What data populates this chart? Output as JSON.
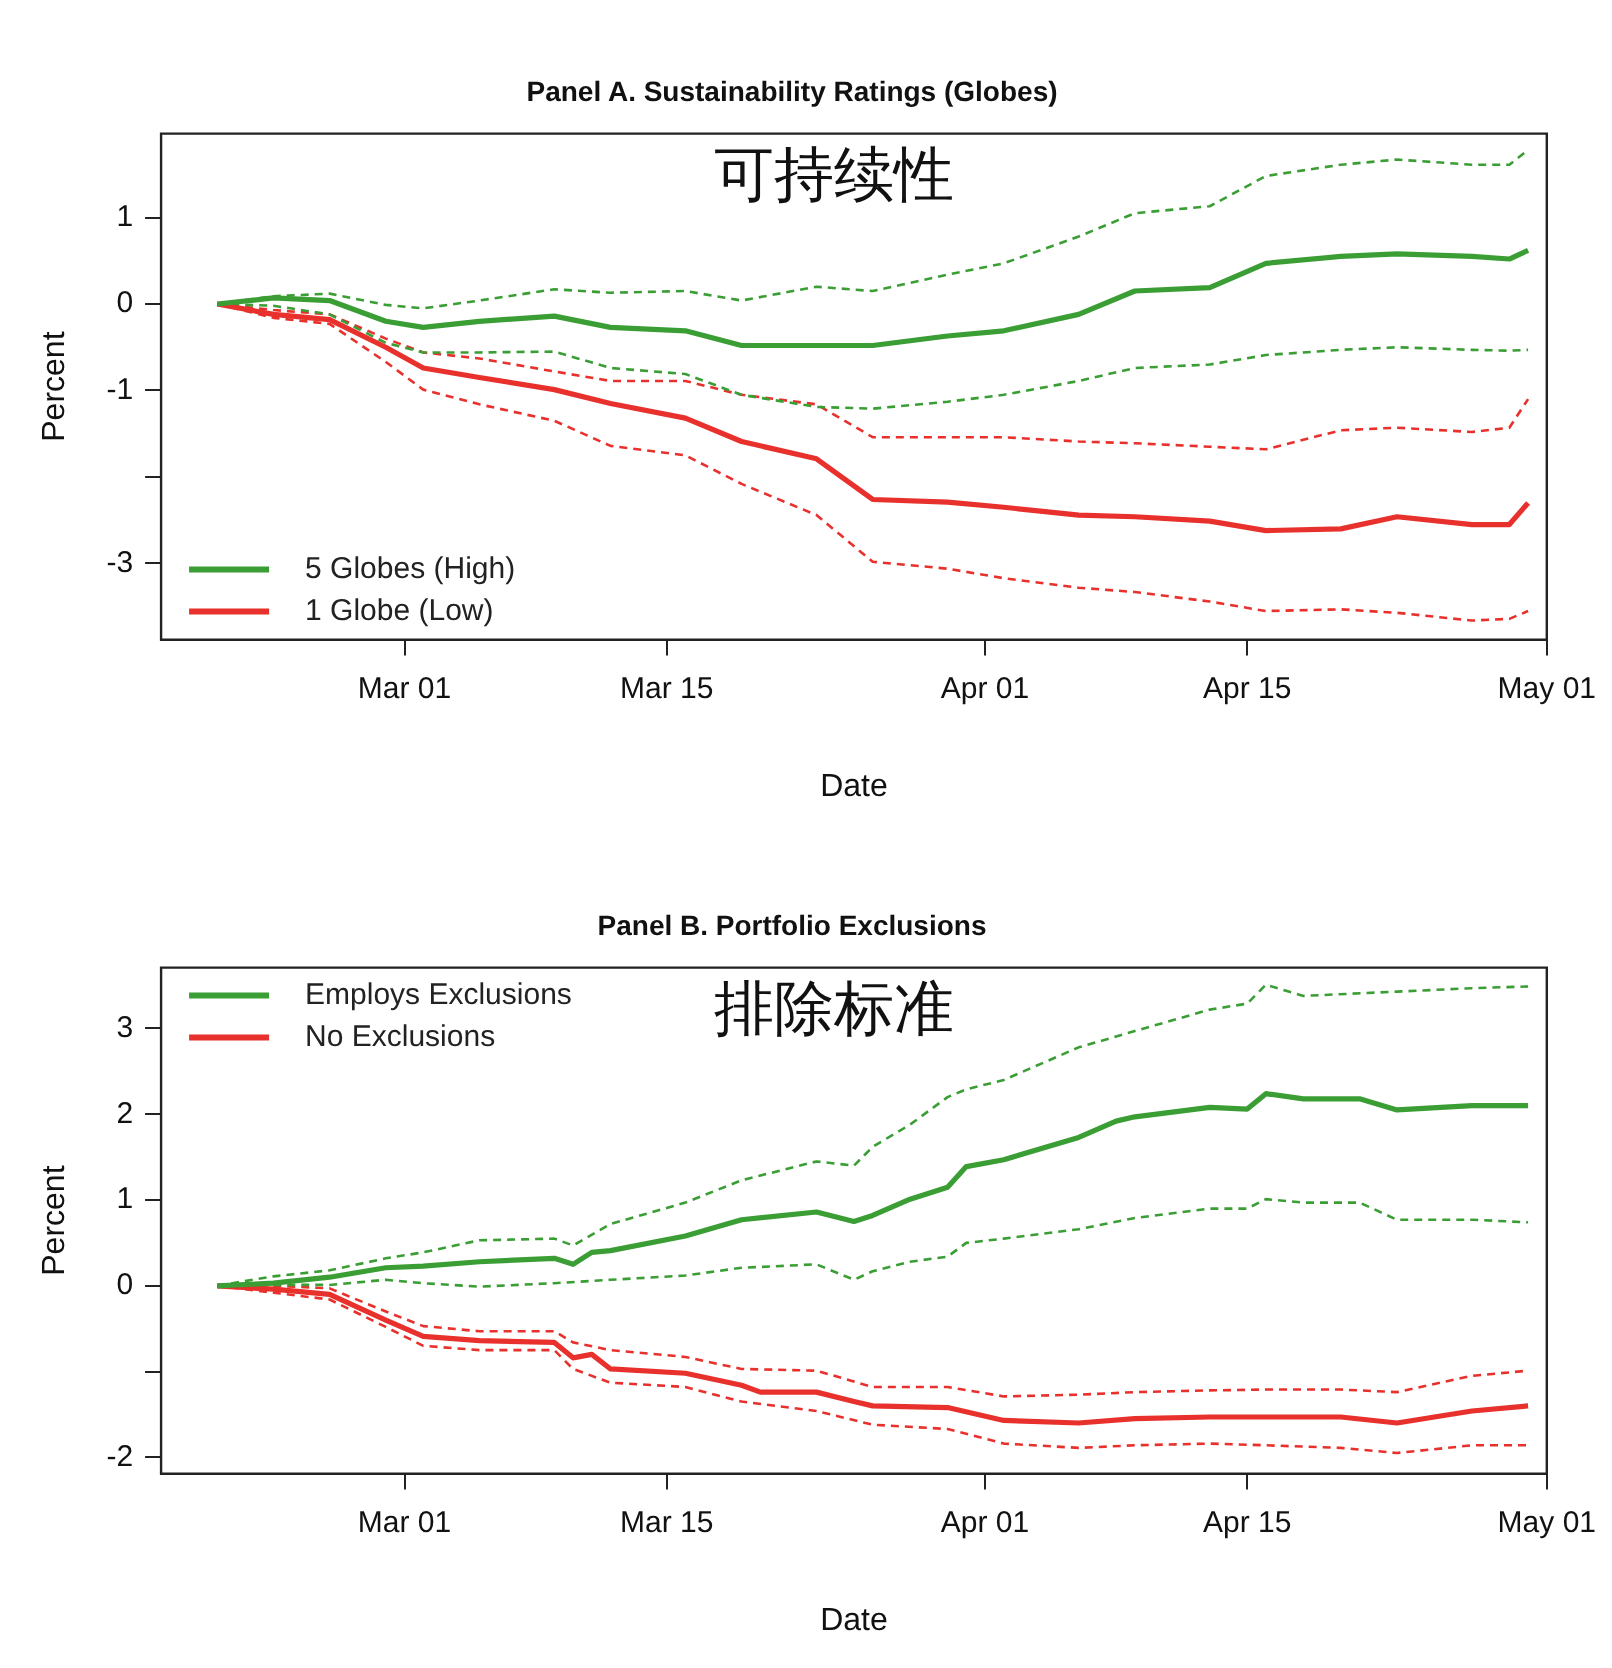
{
  "chart_data": [
    {
      "type": "line",
      "title": "Panel A. Sustainability Ratings (Globes)",
      "xlabel": "Date",
      "ylabel": "Percent",
      "annotations": [
        "可持续性"
      ],
      "xlim": [
        "--02-16",
        "--05-01"
      ],
      "xticks": [
        {
          "value": "--03-01",
          "label": "Mar 01"
        },
        {
          "value": "--03-15",
          "label": "Mar 15"
        },
        {
          "value": "--04-01",
          "label": "Apr 01"
        },
        {
          "value": "--04-15",
          "label": "Apr 15"
        },
        {
          "value": "--05-01",
          "label": "May 01"
        }
      ],
      "ylim": [
        -3.88,
        1.97
      ],
      "yticks": [
        -3,
        {
          "value": -2,
          "label": null
        },
        -1,
        0,
        1
      ],
      "legend": "bottom left",
      "marker": "none",
      "series": [
        {
          "name": "5 Globes (High)",
          "color": "#3a9e35",
          "line_style": "solid",
          "x": [
            "--02-19",
            "--02-22",
            "--02-25",
            "--02-28",
            "--03-02",
            "--03-05",
            "--03-09",
            "--03-12",
            "--03-16",
            "--03-19",
            "--03-23",
            "--03-26",
            "--03-30",
            "--04-02",
            "--04-06",
            "--04-09",
            "--04-13",
            "--04-16",
            "--04-20",
            "--04-23",
            "--04-27",
            "--04-29",
            "--04-30"
          ],
          "values": [
            0,
            0.07,
            0.04,
            -0.2,
            -0.27,
            -0.2,
            -0.14,
            -0.27,
            -0.31,
            -0.48,
            -0.48,
            -0.48,
            -0.37,
            -0.31,
            -0.12,
            0.15,
            0.19,
            0.47,
            0.55,
            0.58,
            0.55,
            0.52,
            0.62
          ]
        },
        {
          "name": "1 Globe (Low)",
          "color": "#e8312c",
          "line_style": "solid",
          "x": [
            "--02-19",
            "--02-22",
            "--02-25",
            "--02-28",
            "--03-02",
            "--03-05",
            "--03-09",
            "--03-12",
            "--03-16",
            "--03-19",
            "--03-23",
            "--03-26",
            "--03-30",
            "--04-02",
            "--04-06",
            "--04-09",
            "--04-13",
            "--04-16",
            "--04-20",
            "--04-23",
            "--04-27",
            "--04-29",
            "--04-30"
          ],
          "values": [
            0,
            -0.12,
            -0.18,
            -0.5,
            -0.74,
            -0.85,
            -0.99,
            -1.15,
            -1.32,
            -1.59,
            -1.79,
            -2.26,
            -2.29,
            -2.35,
            -2.44,
            -2.46,
            -2.51,
            -2.62,
            -2.6,
            -2.46,
            -2.55,
            -2.55,
            -2.3
          ]
        },
        {
          "color": "#3a9e35",
          "line_style": "dashed",
          "x": [
            "--02-19",
            "--02-22",
            "--02-25",
            "--02-28",
            "--03-02",
            "--03-05",
            "--03-09",
            "--03-12",
            "--03-16",
            "--03-19",
            "--03-23",
            "--03-26",
            "--03-30",
            "--04-02",
            "--04-06",
            "--04-09",
            "--04-13",
            "--04-16",
            "--04-20",
            "--04-23",
            "--04-27",
            "--04-29",
            "--04-30"
          ],
          "values": [
            0,
            0.09,
            0.12,
            -0.01,
            -0.05,
            0.04,
            0.17,
            0.13,
            0.15,
            0.04,
            0.2,
            0.15,
            0.34,
            0.47,
            0.78,
            1.05,
            1.13,
            1.48,
            1.61,
            1.67,
            1.61,
            1.61,
            1.78
          ]
        },
        {
          "color": "#3a9e35",
          "line_style": "dashed",
          "x": [
            "--02-19",
            "--02-22",
            "--02-25",
            "--02-28",
            "--03-02",
            "--03-05",
            "--03-09",
            "--03-12",
            "--03-16",
            "--03-19",
            "--03-23",
            "--03-26",
            "--03-30",
            "--04-02",
            "--04-06",
            "--04-09",
            "--04-13",
            "--04-16",
            "--04-20",
            "--04-23",
            "--04-27",
            "--04-29",
            "--04-30"
          ],
          "values": [
            0,
            -0.02,
            -0.12,
            -0.45,
            -0.56,
            -0.56,
            -0.55,
            -0.74,
            -0.81,
            -1.05,
            -1.19,
            -1.21,
            -1.13,
            -1.05,
            -0.89,
            -0.74,
            -0.7,
            -0.59,
            -0.53,
            -0.5,
            -0.53,
            -0.54,
            -0.53
          ]
        },
        {
          "color": "#e8312c",
          "line_style": "dashed",
          "x": [
            "--02-19",
            "--02-22",
            "--02-25",
            "--02-28",
            "--03-02",
            "--03-05",
            "--03-09",
            "--03-12",
            "--03-16",
            "--03-19",
            "--03-23",
            "--03-26",
            "--03-30",
            "--04-02",
            "--04-06",
            "--04-09",
            "--04-13",
            "--04-16",
            "--04-20",
            "--04-23",
            "--04-27",
            "--04-29",
            "--04-30"
          ],
          "values": [
            0,
            -0.07,
            -0.12,
            -0.4,
            -0.56,
            -0.63,
            -0.78,
            -0.89,
            -0.89,
            -1.05,
            -1.16,
            -1.54,
            -1.54,
            -1.54,
            -1.59,
            -1.61,
            -1.65,
            -1.68,
            -1.46,
            -1.43,
            -1.48,
            -1.43,
            -1.1
          ]
        },
        {
          "color": "#e8312c",
          "line_style": "dashed",
          "x": [
            "--02-19",
            "--02-22",
            "--02-25",
            "--02-28",
            "--03-02",
            "--03-05",
            "--03-09",
            "--03-12",
            "--03-16",
            "--03-19",
            "--03-23",
            "--03-26",
            "--03-30",
            "--04-02",
            "--04-06",
            "--04-09",
            "--04-13",
            "--04-16",
            "--04-20",
            "--04-23",
            "--04-27",
            "--04-29",
            "--04-30"
          ],
          "values": [
            0,
            -0.16,
            -0.23,
            -0.67,
            -0.99,
            -1.16,
            -1.35,
            -1.64,
            -1.75,
            -2.08,
            -2.44,
            -2.98,
            -3.06,
            -3.17,
            -3.28,
            -3.33,
            -3.44,
            -3.55,
            -3.53,
            -3.57,
            -3.66,
            -3.64,
            -3.55
          ]
        }
      ]
    },
    {
      "type": "line",
      "title": "Panel B. Portfolio Exclusions",
      "xlabel": "Date",
      "ylabel": "Percent",
      "annotations": [
        "排除标准"
      ],
      "xlim": [
        "--02-16",
        "--05-01"
      ],
      "xticks": [
        {
          "value": "--03-01",
          "label": "Mar 01"
        },
        {
          "value": "--03-15",
          "label": "Mar 15"
        },
        {
          "value": "--04-01",
          "label": "Apr 01"
        },
        {
          "value": "--04-15",
          "label": "Apr 15"
        },
        {
          "value": "--05-01",
          "label": "May 01"
        }
      ],
      "ylim": [
        -2.19,
        3.71
      ],
      "yticks": [
        -2,
        {
          "value": -1,
          "label": null
        },
        0,
        1,
        2,
        3
      ],
      "legend": "top left",
      "marker": "none",
      "series": [
        {
          "name": "Employs Exclusions",
          "color": "#3a9e35",
          "line_style": "solid",
          "x": [
            "--02-19",
            "--02-22",
            "--02-25",
            "--02-28",
            "--03-02",
            "--03-05",
            "--03-09",
            "--03-10",
            "--03-11",
            "--03-12",
            "--03-16",
            "--03-19",
            "--03-23",
            "--03-25",
            "--03-26",
            "--03-28",
            "--03-30",
            "--03-31",
            "--04-02",
            "--04-06",
            "--04-08",
            "--04-09",
            "--04-13",
            "--04-15",
            "--04-16",
            "--04-18",
            "--04-21",
            "--04-23",
            "--04-27",
            "--04-30"
          ],
          "values": [
            0,
            0.03,
            0.1,
            0.21,
            0.23,
            0.28,
            0.32,
            0.25,
            0.39,
            0.41,
            0.58,
            0.77,
            0.86,
            0.75,
            0.82,
            1.01,
            1.15,
            1.39,
            1.47,
            1.73,
            1.92,
            1.97,
            2.08,
            2.06,
            2.24,
            2.18,
            2.18,
            2.05,
            2.1,
            2.1
          ]
        },
        {
          "name": "No Exclusions",
          "color": "#e8312c",
          "line_style": "solid",
          "x": [
            "--02-19",
            "--02-22",
            "--02-25",
            "--02-28",
            "--03-02",
            "--03-05",
            "--03-09",
            "--03-10",
            "--03-11",
            "--03-12",
            "--03-16",
            "--03-19",
            "--03-20",
            "--03-23",
            "--03-25",
            "--03-26",
            "--03-30",
            "--04-02",
            "--04-06",
            "--04-09",
            "--04-13",
            "--04-16",
            "--04-20",
            "--04-23",
            "--04-27",
            "--04-30"
          ],
          "values": [
            0,
            -0.04,
            -0.1,
            -0.4,
            -0.59,
            -0.64,
            -0.66,
            -0.84,
            -0.8,
            -0.97,
            -1.02,
            -1.16,
            -1.24,
            -1.24,
            -1.35,
            -1.4,
            -1.42,
            -1.57,
            -1.6,
            -1.55,
            -1.53,
            -1.53,
            -1.53,
            -1.6,
            -1.46,
            -1.4
          ]
        },
        {
          "color": "#3a9e35",
          "line_style": "dashed",
          "x": [
            "--02-19",
            "--02-22",
            "--02-25",
            "--02-28",
            "--03-02",
            "--03-05",
            "--03-09",
            "--03-10",
            "--03-12",
            "--03-16",
            "--03-19",
            "--03-23",
            "--03-25",
            "--03-26",
            "--03-28",
            "--03-30",
            "--03-31",
            "--04-02",
            "--04-06",
            "--04-09",
            "--04-13",
            "--04-15",
            "--04-16",
            "--04-18",
            "--04-23",
            "--04-27",
            "--04-30"
          ],
          "values": [
            0,
            0.11,
            0.18,
            0.32,
            0.39,
            0.53,
            0.55,
            0.47,
            0.72,
            0.97,
            1.23,
            1.45,
            1.4,
            1.62,
            1.88,
            2.2,
            2.29,
            2.4,
            2.78,
            2.97,
            3.22,
            3.29,
            3.51,
            3.38,
            3.43,
            3.47,
            3.49
          ]
        },
        {
          "color": "#3a9e35",
          "line_style": "dashed",
          "x": [
            "--02-19",
            "--02-22",
            "--02-25",
            "--02-28",
            "--03-02",
            "--03-05",
            "--03-09",
            "--03-12",
            "--03-16",
            "--03-19",
            "--03-23",
            "--03-25",
            "--03-26",
            "--03-28",
            "--03-30",
            "--03-31",
            "--04-02",
            "--04-06",
            "--04-09",
            "--04-13",
            "--04-15",
            "--04-16",
            "--04-18",
            "--04-21",
            "--04-23",
            "--04-27",
            "--04-30"
          ],
          "values": [
            0,
            0.01,
            0.01,
            0.07,
            0.03,
            -0.01,
            0.03,
            0.07,
            0.12,
            0.21,
            0.25,
            0.07,
            0.17,
            0.28,
            0.34,
            0.5,
            0.55,
            0.66,
            0.79,
            0.9,
            0.9,
            1.01,
            0.97,
            0.97,
            0.77,
            0.77,
            0.74
          ]
        },
        {
          "color": "#e8312c",
          "line_style": "dashed",
          "x": [
            "--02-19",
            "--02-22",
            "--02-25",
            "--02-28",
            "--03-02",
            "--03-05",
            "--03-09",
            "--03-10",
            "--03-12",
            "--03-16",
            "--03-19",
            "--03-23",
            "--03-26",
            "--03-30",
            "--04-02",
            "--04-06",
            "--04-09",
            "--04-13",
            "--04-16",
            "--04-20",
            "--04-23",
            "--04-27",
            "--04-30"
          ],
          "values": [
            0,
            0,
            -0.03,
            -0.3,
            -0.47,
            -0.53,
            -0.53,
            -0.66,
            -0.75,
            -0.83,
            -0.97,
            -0.99,
            -1.18,
            -1.18,
            -1.29,
            -1.27,
            -1.24,
            -1.22,
            -1.21,
            -1.21,
            -1.24,
            -1.05,
            -0.99
          ]
        },
        {
          "color": "#e8312c",
          "line_style": "dashed",
          "x": [
            "--02-19",
            "--02-22",
            "--02-25",
            "--02-28",
            "--03-02",
            "--03-05",
            "--03-09",
            "--03-10",
            "--03-12",
            "--03-16",
            "--03-19",
            "--03-23",
            "--03-26",
            "--03-30",
            "--04-02",
            "--04-06",
            "--04-09",
            "--04-13",
            "--04-16",
            "--04-20",
            "--04-23",
            "--04-27",
            "--04-30"
          ],
          "values": [
            0,
            -0.08,
            -0.16,
            -0.48,
            -0.7,
            -0.75,
            -0.75,
            -0.97,
            -1.13,
            -1.18,
            -1.35,
            -1.46,
            -1.62,
            -1.67,
            -1.84,
            -1.89,
            -1.86,
            -1.84,
            -1.86,
            -1.89,
            -1.95,
            -1.86,
            -1.86
          ]
        }
      ]
    }
  ]
}
